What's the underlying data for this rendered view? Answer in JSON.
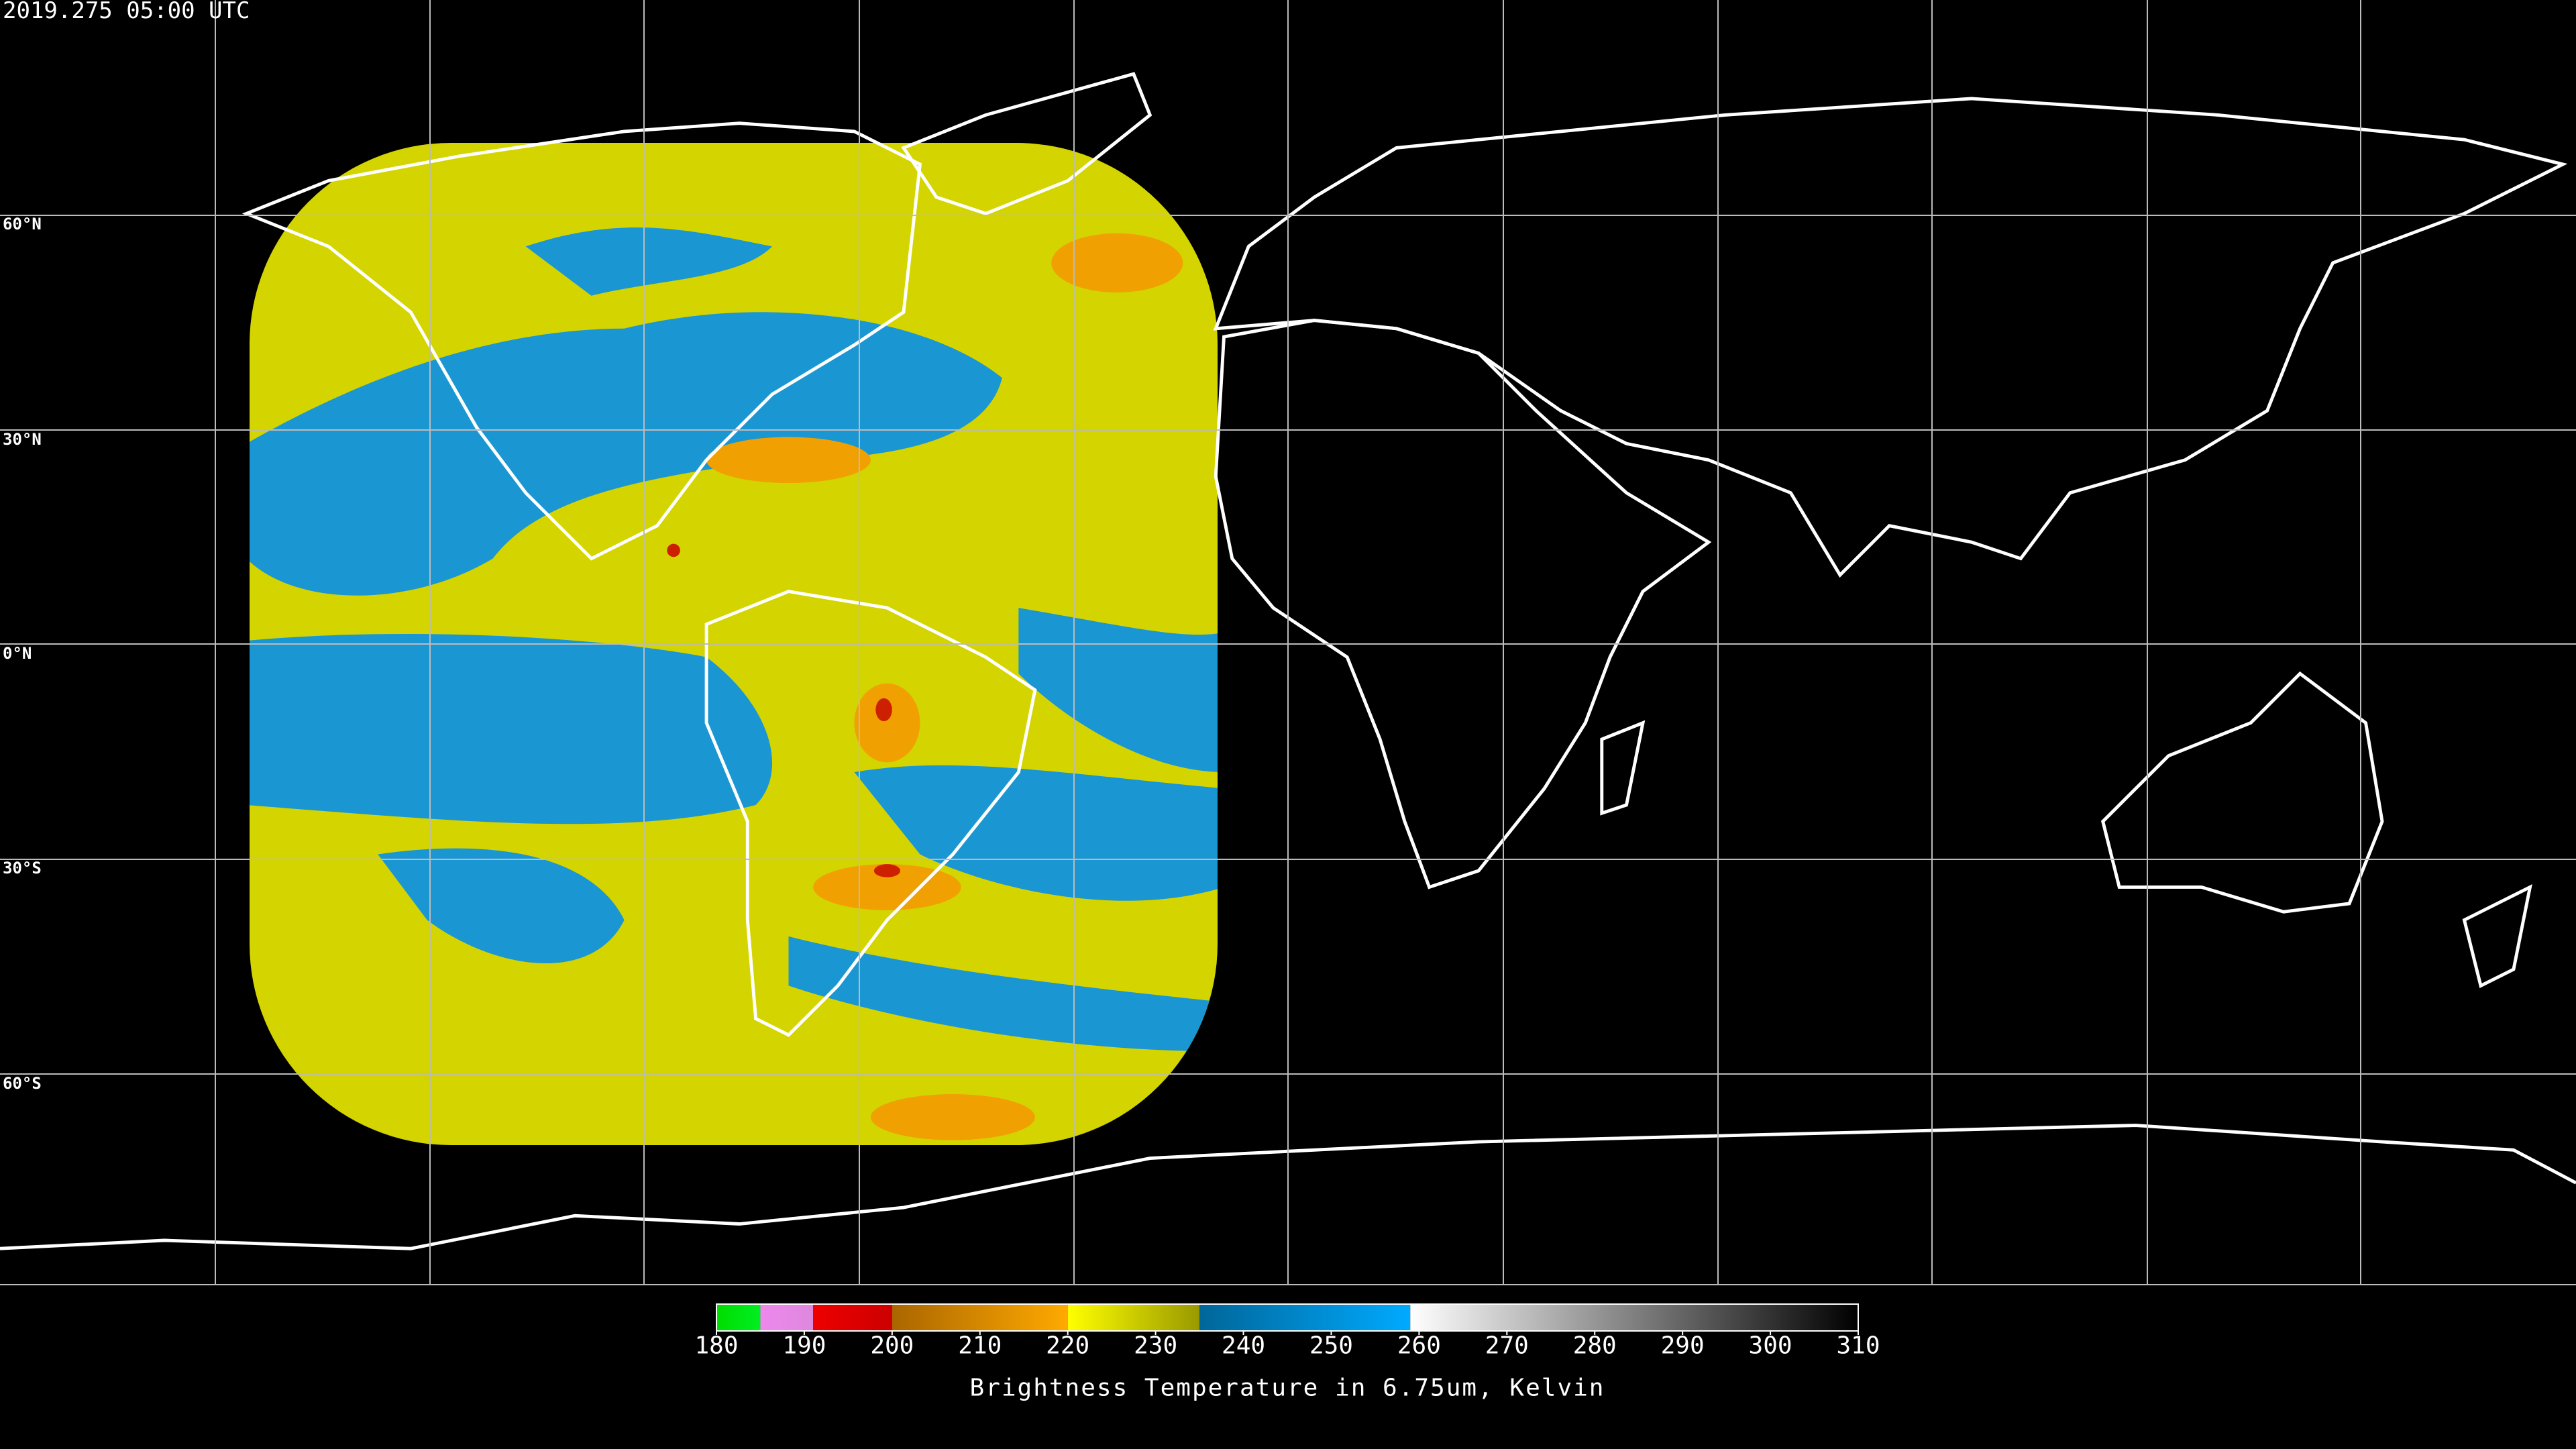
{
  "timestamp": "2019.275 05:00 UTC",
  "latitude_labels": [
    "60°N",
    "30°N",
    "0°N",
    "30°S",
    "60°S"
  ],
  "colorbar": {
    "title": "Brightness Temperature in 6.75um, Kelvin",
    "range": [
      180,
      310
    ],
    "ticks": [
      180,
      190,
      200,
      210,
      220,
      230,
      240,
      250,
      260,
      270,
      280,
      290,
      300,
      310
    ],
    "segments": [
      {
        "range": [
          180,
          185
        ],
        "colors": [
          "#00dd00",
          "#00ee22"
        ]
      },
      {
        "range": [
          185,
          191
        ],
        "colors": [
          "#ee88ee",
          "#dd88dd"
        ]
      },
      {
        "range": [
          191,
          200
        ],
        "colors": [
          "#ee0000",
          "#cc0000"
        ]
      },
      {
        "range": [
          200,
          220
        ],
        "colors": [
          "#aa6600",
          "#ffaa00"
        ]
      },
      {
        "range": [
          220,
          235
        ],
        "colors": [
          "#ffff00",
          "#999900"
        ]
      },
      {
        "range": [
          235,
          259
        ],
        "colors": [
          "#006699",
          "#00aaff"
        ]
      },
      {
        "range": [
          259,
          310
        ],
        "colors": [
          "#ffffff",
          "#000000"
        ]
      }
    ]
  }
}
